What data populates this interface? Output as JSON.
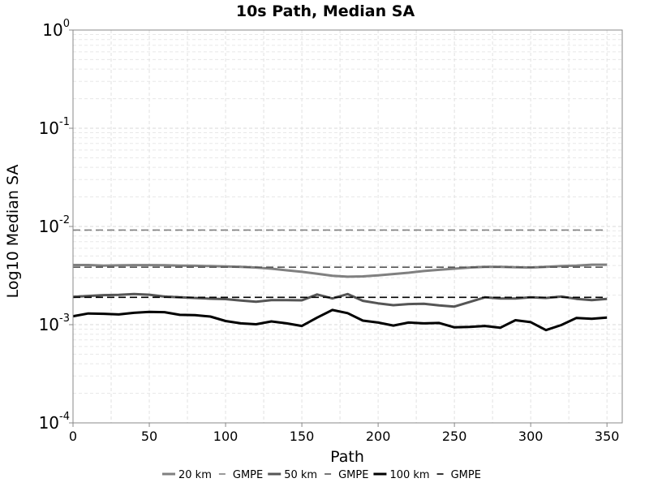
{
  "chart_data": {
    "type": "line",
    "title": "10s Path, Median SA",
    "xlabel": "Path",
    "ylabel": "Log10 Median SA",
    "xlim": [
      0,
      360
    ],
    "ylim": [
      0.0001,
      1
    ],
    "yscale": "log",
    "grid": true,
    "legend_position": "bottom",
    "x_ticks": [
      0,
      50,
      100,
      150,
      200,
      250,
      300,
      350
    ],
    "x_tick_labels": [
      "0",
      "50",
      "100",
      "150",
      "200",
      "250",
      "300",
      "350"
    ],
    "y_ticks": [
      {
        "value": 1,
        "base": "10",
        "exp": "0"
      },
      {
        "value": 0.1,
        "base": "10",
        "exp": "-1"
      },
      {
        "value": 0.01,
        "base": "10",
        "exp": "-2"
      },
      {
        "value": 0.001,
        "base": "10",
        "exp": "-3"
      },
      {
        "value": 0.0001,
        "base": "10",
        "exp": "-4"
      }
    ],
    "x": [
      0,
      10,
      20,
      30,
      40,
      50,
      60,
      70,
      80,
      90,
      100,
      110,
      120,
      130,
      140,
      150,
      160,
      170,
      180,
      190,
      200,
      210,
      220,
      230,
      240,
      250,
      260,
      270,
      280,
      290,
      300,
      310,
      320,
      330,
      340,
      350
    ],
    "series": [
      {
        "name": "20 km",
        "color": "#808080",
        "style": "solid",
        "values": [
          0.00405,
          0.00405,
          0.004,
          0.00402,
          0.00404,
          0.00404,
          0.00403,
          0.004,
          0.00398,
          0.00395,
          0.00392,
          0.00388,
          0.00382,
          0.00372,
          0.00358,
          0.00345,
          0.0033,
          0.00315,
          0.00308,
          0.0031,
          0.00318,
          0.00328,
          0.00338,
          0.00352,
          0.00362,
          0.00372,
          0.00382,
          0.00388,
          0.00388,
          0.00385,
          0.00382,
          0.00388,
          0.00395,
          0.004,
          0.00408,
          0.00408
        ]
      },
      {
        "name": "GMPE",
        "color": "#808080",
        "style": "dashed",
        "values": [
          0.0092,
          0.0092,
          0.0092,
          0.0092,
          0.0092,
          0.0092,
          0.0092,
          0.0092,
          0.0092,
          0.0092,
          0.0092,
          0.0092,
          0.0092,
          0.0092,
          0.0092,
          0.0092,
          0.0092,
          0.0092,
          0.0092,
          0.0092,
          0.0092,
          0.0092,
          0.0092,
          0.0092,
          0.0092,
          0.0092,
          0.0092,
          0.0092,
          0.0092,
          0.0092,
          0.0092,
          0.0092,
          0.0092,
          0.0092,
          0.0092,
          0.0092
        ]
      },
      {
        "name": "50 km",
        "color": "#555555",
        "style": "solid",
        "values": [
          0.00192,
          0.00196,
          0.002,
          0.00201,
          0.00205,
          0.00202,
          0.00193,
          0.0019,
          0.00187,
          0.00184,
          0.00182,
          0.00176,
          0.00171,
          0.00178,
          0.00178,
          0.00177,
          0.00203,
          0.00185,
          0.00205,
          0.00175,
          0.00165,
          0.00158,
          0.00162,
          0.00163,
          0.00157,
          0.00153,
          0.0017,
          0.0019,
          0.00185,
          0.00185,
          0.0019,
          0.00187,
          0.00193,
          0.00183,
          0.00178,
          0.00183
        ]
      },
      {
        "name": "GMPE",
        "color": "#555555",
        "style": "dashed",
        "values": [
          0.00385,
          0.00385,
          0.00385,
          0.00385,
          0.00385,
          0.00385,
          0.00385,
          0.00385,
          0.00385,
          0.00385,
          0.00385,
          0.00385,
          0.00385,
          0.00385,
          0.00385,
          0.00385,
          0.00385,
          0.00385,
          0.00385,
          0.00385,
          0.00385,
          0.00385,
          0.00385,
          0.00385,
          0.00385,
          0.00385,
          0.00385,
          0.00385,
          0.00385,
          0.00385,
          0.00385,
          0.00385,
          0.00385,
          0.00385,
          0.00385,
          0.00385
        ]
      },
      {
        "name": "100 km",
        "color": "#000000",
        "style": "solid",
        "values": [
          0.00122,
          0.0013,
          0.00129,
          0.00127,
          0.00132,
          0.00135,
          0.00134,
          0.00126,
          0.00125,
          0.00121,
          0.00109,
          0.00103,
          0.00101,
          0.00108,
          0.00103,
          0.00097,
          0.00118,
          0.00141,
          0.00131,
          0.0011,
          0.00105,
          0.00098,
          0.00105,
          0.00103,
          0.00104,
          0.00094,
          0.00095,
          0.00097,
          0.00093,
          0.00111,
          0.00106,
          0.00088,
          0.00099,
          0.00117,
          0.00115,
          0.00118
        ]
      },
      {
        "name": "GMPE",
        "color": "#000000",
        "style": "dashed",
        "values": [
          0.0019,
          0.0019,
          0.0019,
          0.0019,
          0.0019,
          0.0019,
          0.0019,
          0.0019,
          0.0019,
          0.0019,
          0.0019,
          0.0019,
          0.0019,
          0.0019,
          0.0019,
          0.0019,
          0.0019,
          0.0019,
          0.0019,
          0.0019,
          0.0019,
          0.0019,
          0.0019,
          0.0019,
          0.0019,
          0.0019,
          0.0019,
          0.0019,
          0.0019,
          0.0019,
          0.0019,
          0.0019,
          0.0019,
          0.0019,
          0.0019,
          0.0019
        ]
      }
    ]
  }
}
